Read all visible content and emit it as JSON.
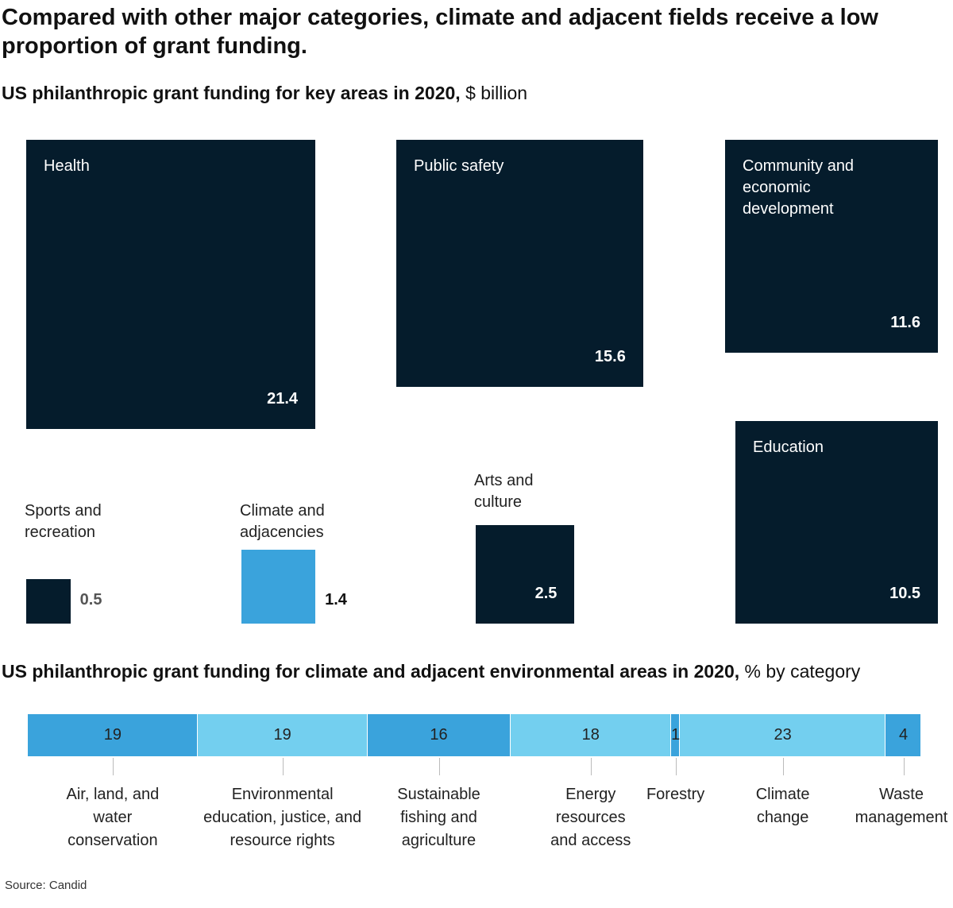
{
  "title": "Compared with other major categories, climate and adjacent fields receive a low proportion of grant funding.",
  "chart_data": [
    {
      "type": "square",
      "title": "US philanthropic grant funding for key areas in 2020,",
      "unit": "$ billion",
      "categories": [
        "Health",
        "Public safety",
        "Community and economic development",
        "Sports and recreation",
        "Climate and adjacencies",
        "Arts and culture",
        "Education"
      ],
      "values": [
        21.4,
        15.6,
        11.6,
        0.5,
        1.4,
        2.5,
        10.5
      ],
      "colors": [
        "#051c2c",
        "#051c2c",
        "#051c2c",
        "#051c2c",
        "#3aa3dc",
        "#051c2c",
        "#051c2c"
      ]
    },
    {
      "type": "stacked-bar",
      "title": "US philanthropic grant funding for climate and adjacent environmental areas in 2020,",
      "unit": "% by category",
      "categories": [
        "Air, land, and water conservation",
        "Environmental education, justice, and resource rights",
        "Sustainable fishing and agriculture",
        "Energy resources and access",
        "Forestry",
        "Climate change",
        "Waste management"
      ],
      "values": [
        19,
        19,
        16,
        18,
        1,
        23,
        4
      ],
      "colors": [
        "#3aa3dc",
        "#73cfef",
        "#3aa3dc",
        "#73cfef",
        "#3aa3dc",
        "#73cfef",
        "#3aa3dc"
      ]
    }
  ],
  "source": "Source: Candid"
}
